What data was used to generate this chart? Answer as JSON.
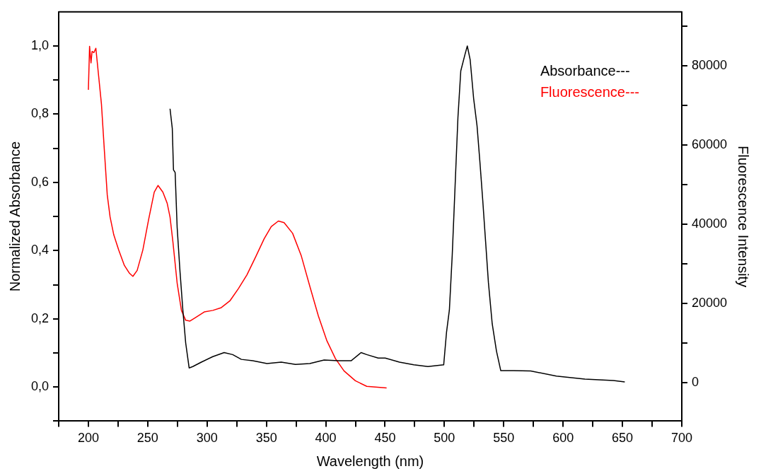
{
  "chart_data": {
    "type": "line",
    "xlabel": "Wavelength (nm)",
    "ylabel": "Normalized Absorbance",
    "y2label": "Fluorescence Intensity",
    "xlim": [
      175,
      700
    ],
    "xticks": [
      {
        "value": 175,
        "label": null
      },
      200,
      {
        "value": 225,
        "label": null
      },
      250,
      {
        "value": 275,
        "label": null
      },
      300,
      {
        "value": 325,
        "label": null
      },
      350,
      {
        "value": 375,
        "label": null
      },
      400,
      {
        "value": 425,
        "label": null
      },
      450,
      {
        "value": 475,
        "label": null
      },
      500,
      {
        "value": 525,
        "label": null
      },
      550,
      {
        "value": 575,
        "label": null
      },
      600,
      {
        "value": 625,
        "label": null
      },
      650,
      {
        "value": 675,
        "label": null
      },
      700
    ],
    "ylim": [
      -0.1,
      1.1
    ],
    "yticks": [
      {
        "value": -0.1,
        "label": null
      },
      {
        "value": 0,
        "label": "0,0"
      },
      {
        "value": 0.1,
        "label": null
      },
      {
        "value": 0.2,
        "label": "0,2"
      },
      {
        "value": 0.3,
        "label": null
      },
      {
        "value": 0.4,
        "label": "0,4"
      },
      {
        "value": 0.5,
        "label": null
      },
      {
        "value": 0.6,
        "label": "0,6"
      },
      {
        "value": 0.7,
        "label": null
      },
      {
        "value": 0.8,
        "label": "0,8"
      },
      {
        "value": 0.9,
        "label": null
      },
      {
        "value": 1.0,
        "label": "1,0"
      }
    ],
    "y2lim": [
      -9800,
      93700
    ],
    "y2ticks": [
      0,
      {
        "value": 10000,
        "label": null
      },
      20000,
      {
        "value": 30000,
        "label": null
      },
      40000,
      {
        "value": 50000,
        "label": null
      },
      60000,
      {
        "value": 70000,
        "label": null
      },
      80000,
      {
        "value": 90000,
        "label": null
      }
    ],
    "grid": false,
    "legend": "top right",
    "marker": "none",
    "line_style": "solid",
    "series": [
      {
        "name": "Absorbance---",
        "color": "#000000",
        "x": [
          268.8,
          270.7,
          271.7,
          273.1,
          274.8,
          277.2,
          279.6,
          282,
          284.9,
          288,
          295.2,
          304.8,
          314.4,
          321.6,
          328.9,
          338.5,
          350.5,
          362.5,
          374.5,
          386.6,
          398.6,
          410.6,
          421.4,
          429.8,
          434.6,
          444.2,
          450.1,
          462.1,
          474.2,
          486.1,
          499.4,
          501.8,
          504.2,
          506.6,
          509.0,
          511.4,
          513.8,
          517.4,
          519.3,
          521.7,
          524.6,
          527.5,
          529.9,
          532.3,
          534.7,
          537.1,
          540.3,
          543.9,
          547.5,
          558.3,
          572.7,
          594.4,
          618.4,
          642.4,
          652
        ],
        "values": [
          0.816,
          0.758,
          0.637,
          0.629,
          0.468,
          0.339,
          0.226,
          0.129,
          0.056,
          0.06,
          0.073,
          0.089,
          0.101,
          0.095,
          0.081,
          0.077,
          0.069,
          0.073,
          0.066,
          0.069,
          0.079,
          0.077,
          0.077,
          0.101,
          0.095,
          0.085,
          0.085,
          0.073,
          0.065,
          0.06,
          0.065,
          0.161,
          0.226,
          0.387,
          0.589,
          0.79,
          0.927,
          0.976,
          1.0,
          0.96,
          0.847,
          0.766,
          0.661,
          0.548,
          0.427,
          0.306,
          0.185,
          0.105,
          0.048,
          0.048,
          0.047,
          0.032,
          0.023,
          0.019,
          0.015
        ]
      },
      {
        "name": "Fluorescence---",
        "color": "#ff0000",
        "axis": "y2",
        "x": [
          200,
          201,
          202.2,
          203.1,
          204.6,
          206.3,
          208.7,
          211,
          213.5,
          215.9,
          218.3,
          221.4,
          225.5,
          230.3,
          234.6,
          237.5,
          241.1,
          245.9,
          250.7,
          255.5,
          258.7,
          262.8,
          266.4,
          268.8,
          271.2,
          274.8,
          278.4,
          282,
          285.6,
          290.4,
          297.6,
          304.8,
          312,
          319.2,
          326.4,
          333.6,
          340.9,
          348.1,
          354.1,
          360.1,
          364.9,
          372.1,
          379.3,
          386.5,
          393.8,
          401,
          408.2,
          415.4,
          425,
          434.6,
          451.3
        ],
        "values": [
          74000,
          85000,
          80800,
          83700,
          83400,
          84500,
          77300,
          70400,
          58500,
          47400,
          41800,
          37300,
          33500,
          29600,
          27600,
          26800,
          28300,
          33500,
          41100,
          48100,
          49800,
          48100,
          45300,
          41800,
          35600,
          25100,
          18200,
          15700,
          15500,
          16400,
          17800,
          18200,
          18900,
          20600,
          23700,
          27200,
          31700,
          36300,
          39400,
          40800,
          40400,
          37700,
          32100,
          24400,
          16800,
          10500,
          6000,
          2900,
          400,
          -1000,
          -1400
        ]
      }
    ]
  }
}
